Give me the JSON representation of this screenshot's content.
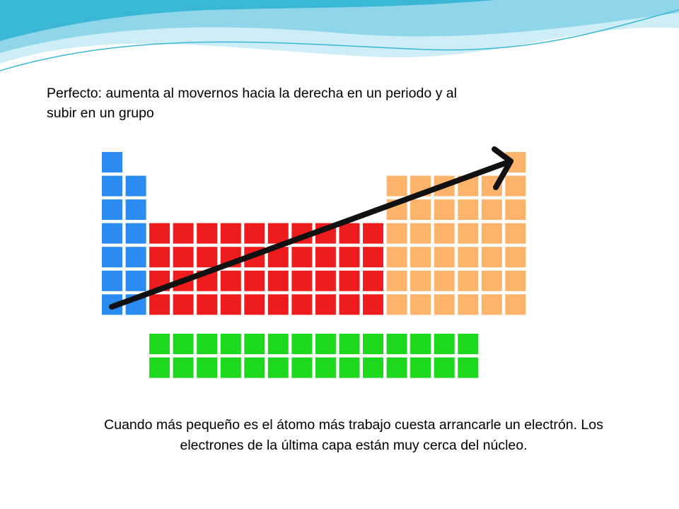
{
  "slide": {
    "title": "Perfecto: aumenta al movernos hacia la derecha en un periodo y al subir en un grupo",
    "caption": "Cuando más pequeño es el átomo más trabajo cuesta arrancarle un electrón. Los electrones de la última capa están muy cerca del núcleo."
  },
  "periodic_table": {
    "colors": {
      "s_block": "#2a8cf0",
      "d_block": "#ee1c1c",
      "p_block": "#fcb46c",
      "f_block": "#1ed81e",
      "arrow": "#111111"
    },
    "arrow_direction": "up-right"
  },
  "theme": {
    "wave_colors": [
      "#3bb7d6",
      "#8fd6ea",
      "#cdeef6"
    ]
  }
}
